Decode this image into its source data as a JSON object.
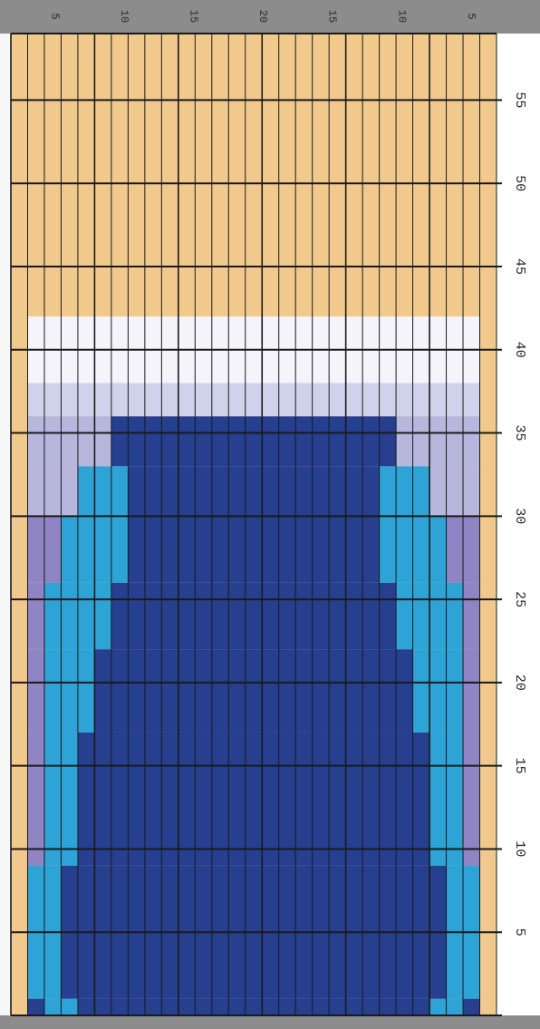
{
  "colors": {
    "background": "#f1c98c",
    "white": "#f4f4fa",
    "dark_blue": "#263f8e",
    "light_blue": "#2ea3d6",
    "lavender": "#8f84c4",
    "grid": "#1a1a1a",
    "ruler": "#8c8c8c"
  },
  "chart_data": {
    "type": "heatmap",
    "title": "",
    "rows": 59,
    "cols": 29,
    "row_tick_labels": [
      "5",
      "10",
      "15",
      "20",
      "25",
      "30",
      "35",
      "40",
      "45",
      "50",
      "55"
    ],
    "col_tick_labels": [
      "5",
      "10",
      "15",
      "20",
      "15",
      "10",
      "5"
    ],
    "rows_from_bottom": [
      [
        1,
        1,
        "O",
        "D",
        "L",
        "D",
        "L",
        "D",
        "O"
      ],
      [
        2,
        9,
        "O",
        "L",
        "D",
        "L",
        "O"
      ],
      [
        10,
        17,
        "O",
        "V",
        "L",
        "D",
        "L",
        "V",
        "O"
      ],
      [
        18,
        22,
        "O",
        "V",
        "L",
        "D",
        "L",
        "V",
        "O"
      ],
      [
        23,
        26,
        "O",
        "V",
        "L",
        "D",
        "L",
        "V",
        "O"
      ],
      [
        27,
        30,
        "O",
        "V",
        "L",
        "D",
        "L",
        "V",
        "O"
      ],
      [
        31,
        33,
        "O",
        "V",
        "L",
        "D",
        "L",
        "V",
        "O"
      ],
      [
        34,
        36,
        "O",
        "V",
        "D",
        "V",
        "O"
      ],
      [
        37,
        38,
        "O",
        "V",
        "O"
      ],
      [
        39,
        42,
        "O",
        "W",
        "O"
      ],
      [
        43,
        59,
        "O"
      ]
    ]
  }
}
